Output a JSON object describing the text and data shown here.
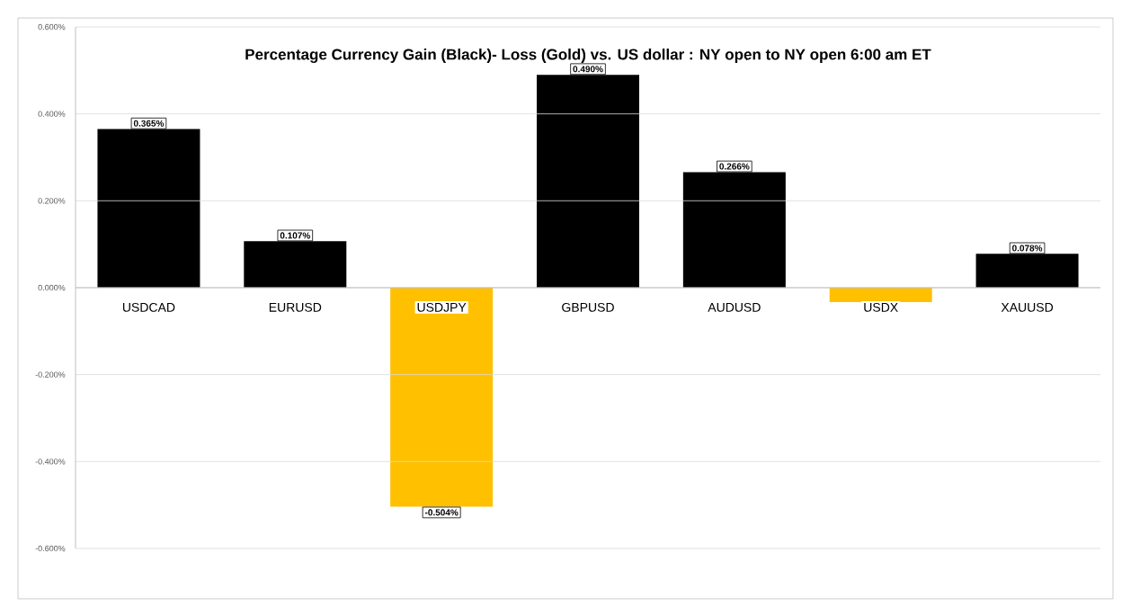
{
  "chart_data": {
    "type": "bar",
    "title": "Percentage Currency  Gain (Black)- Loss (Gold)  vs. US dollar :  NY open to NY open  6:00 am ET",
    "categories": [
      "USDCAD",
      "EURUSD",
      "USDJPY",
      "GBPUSD",
      "AUDUSD",
      "USDX",
      "XAUUSD"
    ],
    "values": [
      0.365,
      0.107,
      -0.504,
      0.49,
      0.266,
      -0.033,
      0.078
    ],
    "colors": [
      "#000000",
      "#000000",
      "#ffc000",
      "#000000",
      "#000000",
      "#ffc000",
      "#000000"
    ],
    "value_labels": [
      "0.365%",
      "0.107%",
      "-0.504%",
      "0.490%",
      "0.266%",
      null,
      "0.078%"
    ],
    "ylim": [
      -0.6,
      0.6
    ],
    "yticks": [
      {
        "value": -0.6,
        "label": "-0.600%"
      },
      {
        "value": -0.4,
        "label": "-0.400%"
      },
      {
        "value": -0.2,
        "label": "-0.200%"
      },
      {
        "value": 0,
        "label": "0.000%"
      },
      {
        "value": 0.2,
        "label": "0.200%"
      },
      {
        "value": 0.4,
        "label": "0.400%"
      },
      {
        "value": 0.6,
        "label": "0.600%"
      }
    ],
    "grid": "y"
  }
}
